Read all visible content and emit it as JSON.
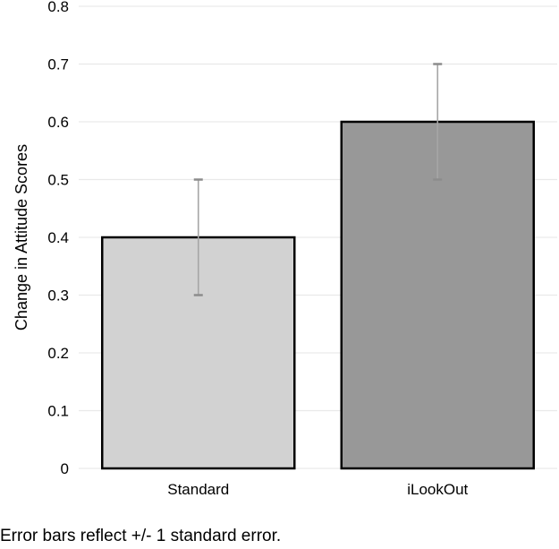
{
  "figure": {
    "caption": "Error bars reflect +/- 1 standard error."
  },
  "chart_data": {
    "type": "bar",
    "title": "",
    "categories": [
      "Standard",
      "iLookOut"
    ],
    "values": [
      0.4,
      0.6
    ],
    "errors_plus": [
      0.1,
      0.1
    ],
    "errors_minus": [
      0.1,
      0.1
    ],
    "xlabel": "",
    "ylabel": "Change in Attitude Scores",
    "ylim": [
      0,
      0.8
    ],
    "ytick_values": [
      0,
      0.1,
      0.2,
      0.3,
      0.4,
      0.5,
      0.6,
      0.7,
      0.8
    ],
    "ytick_labels": [
      "0",
      "0.1",
      "0.2",
      "0.3",
      "0.4",
      "0.5",
      "0.6",
      "0.7",
      "0.8"
    ],
    "grid": true,
    "legend": false,
    "annotations": [
      "Error bars reflect +/- 1 standard error."
    ],
    "colors": {
      "bar_fills": [
        "#d2d2d2",
        "#989898"
      ],
      "bar_border": "#000000",
      "error_bar_line": "#a6a6a6",
      "error_bar_cap": "#8c8c8c",
      "gridline": "#e9e9e9",
      "text": "#000000",
      "background": "#ffffff"
    }
  }
}
